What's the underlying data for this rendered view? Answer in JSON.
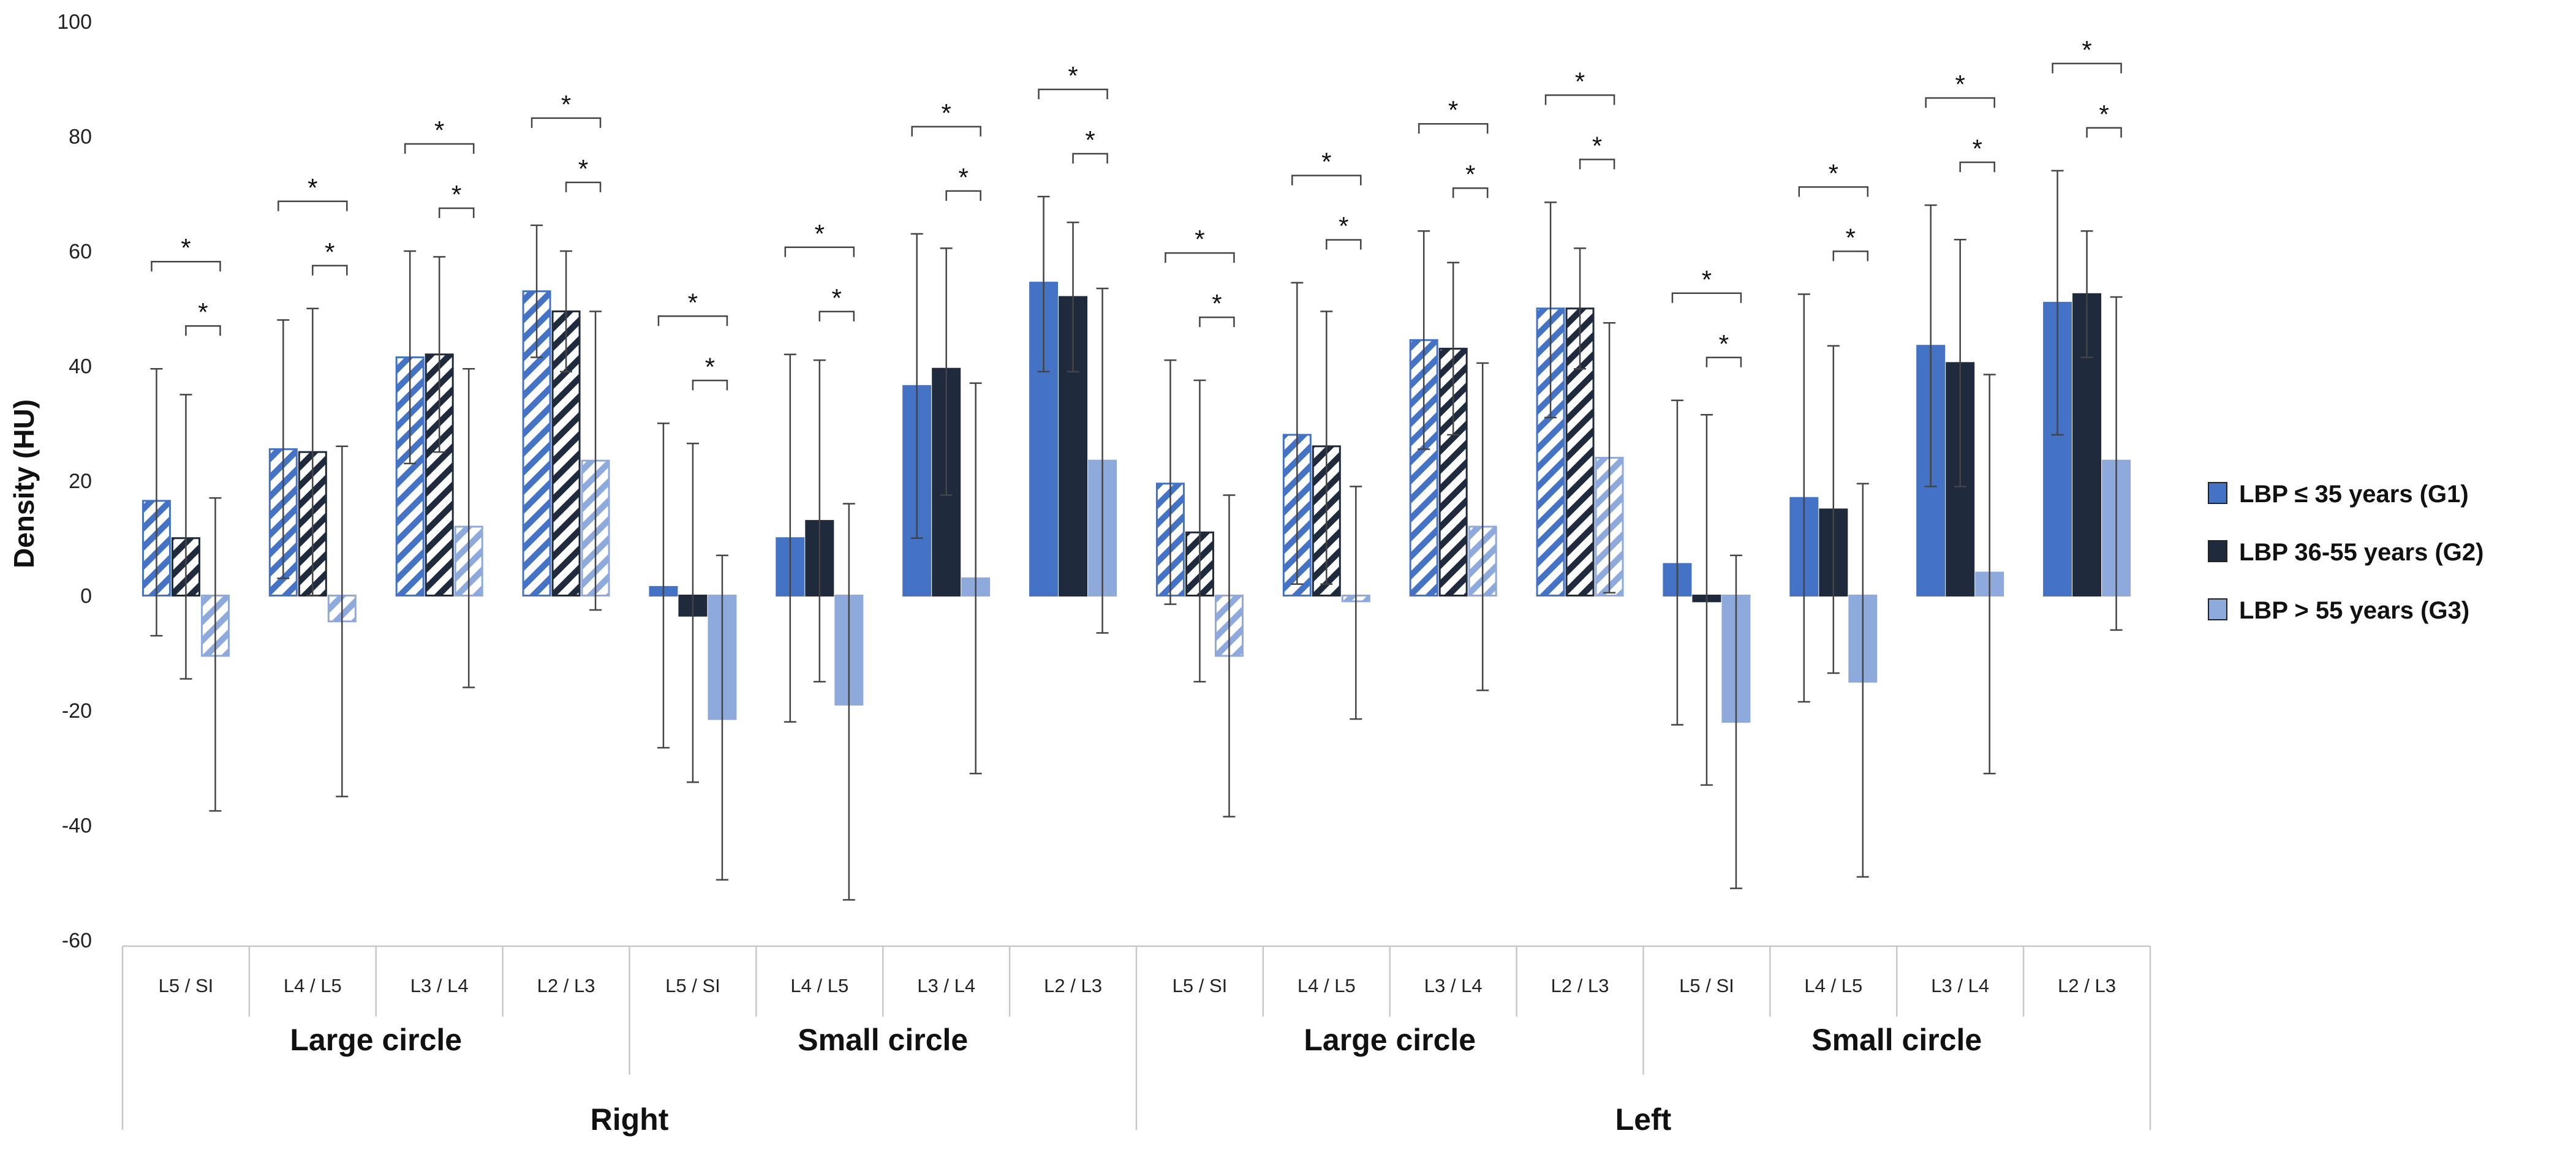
{
  "chart_data": {
    "type": "bar",
    "title": "",
    "ylabel": "Density (HU)",
    "xlabel": "",
    "ylim": [
      -60,
      100
    ],
    "yticks": [
      -60,
      -40,
      -20,
      0,
      20,
      40,
      60,
      80,
      100
    ],
    "grid": false,
    "legend_position": "right",
    "categories": [
      "L5 / SI",
      "L4 / L5",
      "L3 / L4",
      "L2 / L3",
      "L5 / SI",
      "L4 / L5",
      "L3 / L4",
      "L2 / L3",
      "L5 / SI",
      "L4 / L5",
      "L3 / L4",
      "L2 / L3",
      "L5 / SI",
      "L4 / L5",
      "L3 / L4",
      "L2 / L3"
    ],
    "subgroups": [
      {
        "label": "Large circle",
        "pattern": "hatched"
      },
      {
        "label": "Small circle",
        "pattern": "solid"
      },
      {
        "label": "Large circle",
        "pattern": "hatched"
      },
      {
        "label": "Small circle",
        "pattern": "solid"
      }
    ],
    "sides": [
      "Right",
      "Left"
    ],
    "series": [
      {
        "name": "LBP ≤ 35 years (G1)",
        "color": "#4472C4",
        "values": [
          16.5,
          25.5,
          41.5,
          53,
          1.5,
          10,
          36.5,
          54.5,
          19.5,
          28,
          44.5,
          50,
          5.5,
          17,
          43.5,
          51
        ],
        "err_upper": [
          39.5,
          48,
          60,
          64.5,
          30,
          42,
          63,
          69.5,
          41,
          54.5,
          63.5,
          68.5,
          34,
          52.5,
          68,
          74
        ],
        "err_lower": [
          -7,
          3,
          23,
          41.5,
          -26.5,
          -22,
          10,
          39,
          -1.5,
          2,
          25.5,
          31,
          -22.5,
          -18.5,
          19,
          28
        ]
      },
      {
        "name": "LBP 36-55 years (G2)",
        "color": "#1F2A3D",
        "values": [
          10,
          25,
          42,
          49.5,
          -3.5,
          13,
          39.5,
          52,
          11,
          26,
          43,
          50,
          -1,
          15,
          40.5,
          52.5
        ],
        "err_upper": [
          35,
          50,
          59,
          60,
          26.5,
          41,
          60.5,
          65,
          37.5,
          49.5,
          58,
          60.5,
          31.5,
          43.5,
          62,
          63.5
        ],
        "err_lower": [
          -14.5,
          0,
          25,
          39,
          -32.5,
          -15,
          17.5,
          39,
          -15,
          2,
          28,
          39.5,
          -33,
          -13.5,
          19,
          41.5
        ]
      },
      {
        "name": "LBP > 55 years (G3)",
        "color": "#8EA9DB",
        "values": [
          -10.5,
          -4.5,
          12,
          23.5,
          -21.5,
          -19,
          3,
          23.5,
          -10.5,
          -1,
          12,
          24,
          -22,
          -15,
          4,
          23.5
        ],
        "err_upper": [
          17,
          26,
          39.5,
          49.5,
          7,
          16,
          37,
          53.5,
          17.5,
          19,
          40.5,
          47.5,
          7,
          19.5,
          38.5,
          52
        ],
        "err_lower": [
          -37.5,
          -35,
          -16,
          -2.5,
          -49.5,
          -53,
          -31,
          -6.5,
          -38.5,
          -21.5,
          -16.5,
          0.5,
          -51,
          -49,
          -31,
          -6
        ]
      }
    ],
    "significance_marker": "*",
    "significance_brackets": "each category: G1 vs G3 (upper bracket) and G2 vs G3 (lower bracket)"
  }
}
